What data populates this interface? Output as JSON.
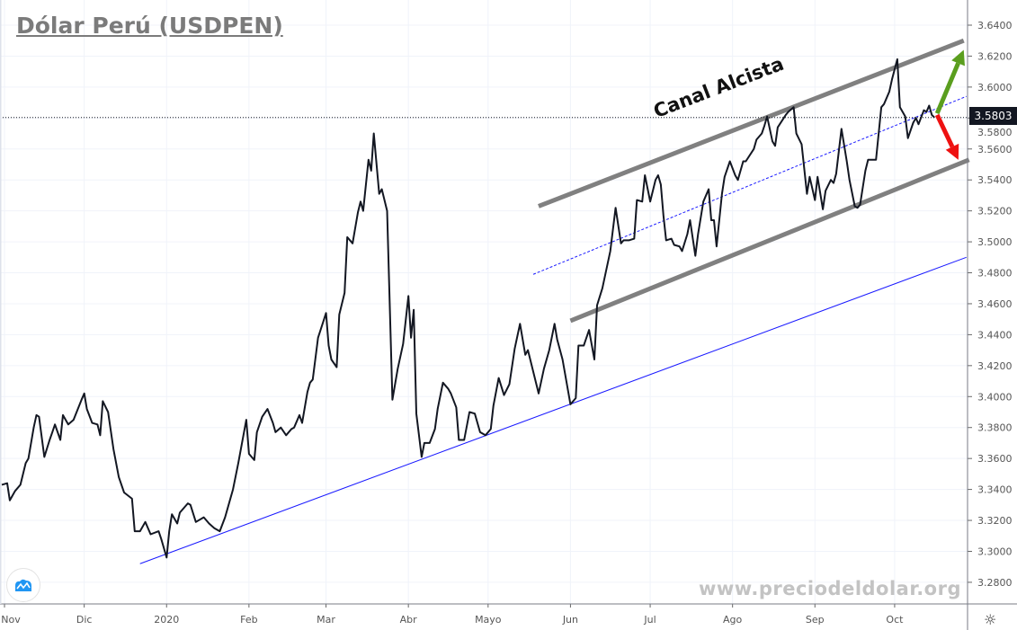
{
  "title": "Dólar Perú (USDPEN)",
  "watermark": "www.preciodeldolar.org",
  "annotation": "Canal Alcista",
  "last_price_label": "3.5803",
  "icons": {
    "logo": "tradingview-cloud-logo",
    "settings": "gear-icon"
  },
  "colors": {
    "price_line": "#131722",
    "support_line": "#1a1aff",
    "channel_lines": "#808080",
    "up_arrow": "#5a9e1e",
    "down_arrow": "#ee1111",
    "price_label_bg": "#131722"
  },
  "chart_data": {
    "type": "line",
    "title": "Dólar Perú (USDPEN)",
    "xlabel": "",
    "ylabel": "",
    "ylim": [
      3.27,
      3.65
    ],
    "grid": true,
    "y_ticks": [
      "3.2800",
      "3.3000",
      "3.3200",
      "3.3400",
      "3.3600",
      "3.3800",
      "3.4000",
      "3.4200",
      "3.4400",
      "3.4600",
      "3.4800",
      "3.5000",
      "3.5200",
      "3.5400",
      "3.5600",
      "3.5800",
      "3.6000",
      "3.6200",
      "3.6400"
    ],
    "x_ticks": [
      {
        "label": "Nov",
        "date": "2019-11-01"
      },
      {
        "label": "Dic",
        "date": "2019-12-01"
      },
      {
        "label": "2020",
        "date": "2020-01-01"
      },
      {
        "label": "Feb",
        "date": "2020-02-01"
      },
      {
        "label": "Mar",
        "date": "2020-03-01"
      },
      {
        "label": "Abr",
        "date": "2020-04-01"
      },
      {
        "label": "Mayo",
        "date": "2020-05-01"
      },
      {
        "label": "Jun",
        "date": "2020-06-01"
      },
      {
        "label": "Jul",
        "date": "2020-07-01"
      },
      {
        "label": "Ago",
        "date": "2020-08-01"
      },
      {
        "label": "Sep",
        "date": "2020-09-01"
      },
      {
        "label": "Oct",
        "date": "2020-10-01"
      }
    ],
    "last_value": 3.5803,
    "series": [
      {
        "points": [
          [
            "2019-10-31",
            3.343
          ],
          [
            "2019-11-02",
            3.344
          ],
          [
            "2019-11-03",
            3.333
          ],
          [
            "2019-11-05",
            3.339
          ],
          [
            "2019-11-07",
            3.343
          ],
          [
            "2019-11-09",
            3.357
          ],
          [
            "2019-11-10",
            3.36
          ],
          [
            "2019-11-12",
            3.38
          ],
          [
            "2019-11-13",
            3.388
          ],
          [
            "2019-11-14",
            3.387
          ],
          [
            "2019-11-16",
            3.361
          ],
          [
            "2019-11-18",
            3.372
          ],
          [
            "2019-11-19",
            3.377
          ],
          [
            "2019-11-20",
            3.382
          ],
          [
            "2019-11-22",
            3.372
          ],
          [
            "2019-11-23",
            3.388
          ],
          [
            "2019-11-25",
            3.382
          ],
          [
            "2019-11-27",
            3.385
          ],
          [
            "2019-11-30",
            3.398
          ],
          [
            "2019-12-01",
            3.402
          ],
          [
            "2019-12-02",
            3.392
          ],
          [
            "2019-12-04",
            3.383
          ],
          [
            "2019-12-06",
            3.382
          ],
          [
            "2019-12-07",
            3.375
          ],
          [
            "2019-12-08",
            3.397
          ],
          [
            "2019-12-10",
            3.39
          ],
          [
            "2019-12-12",
            3.366
          ],
          [
            "2019-12-14",
            3.348
          ],
          [
            "2019-12-16",
            3.338
          ],
          [
            "2019-12-19",
            3.334
          ],
          [
            "2019-12-20",
            3.313
          ],
          [
            "2019-12-22",
            3.313
          ],
          [
            "2019-12-24",
            3.319
          ],
          [
            "2019-12-26",
            3.311
          ],
          [
            "2019-12-29",
            3.313
          ],
          [
            "2019-12-30",
            3.308
          ],
          [
            "2020-01-01",
            3.296
          ],
          [
            "2020-01-02",
            3.313
          ],
          [
            "2020-01-03",
            3.324
          ],
          [
            "2020-01-05",
            3.318
          ],
          [
            "2020-01-06",
            3.325
          ],
          [
            "2020-01-09",
            3.331
          ],
          [
            "2020-01-10",
            3.33
          ],
          [
            "2020-01-12",
            3.319
          ],
          [
            "2020-01-15",
            3.322
          ],
          [
            "2020-01-17",
            3.318
          ],
          [
            "2020-01-19",
            3.315
          ],
          [
            "2020-01-21",
            3.313
          ],
          [
            "2020-01-23",
            3.322
          ],
          [
            "2020-01-26",
            3.34
          ],
          [
            "2020-01-28",
            3.357
          ],
          [
            "2020-01-31",
            3.385
          ],
          [
            "2020-02-01",
            3.363
          ],
          [
            "2020-02-03",
            3.359
          ],
          [
            "2020-02-04",
            3.377
          ],
          [
            "2020-02-06",
            3.387
          ],
          [
            "2020-02-08",
            3.392
          ],
          [
            "2020-02-10",
            3.383
          ],
          [
            "2020-02-11",
            3.377
          ],
          [
            "2020-02-13",
            3.38
          ],
          [
            "2020-02-15",
            3.375
          ],
          [
            "2020-02-17",
            3.379
          ],
          [
            "2020-02-18",
            3.38
          ],
          [
            "2020-02-20",
            3.388
          ],
          [
            "2020-02-21",
            3.383
          ],
          [
            "2020-02-23",
            3.403
          ],
          [
            "2020-02-24",
            3.409
          ],
          [
            "2020-02-25",
            3.411
          ],
          [
            "2020-02-27",
            3.438
          ],
          [
            "2020-03-01",
            3.454
          ],
          [
            "2020-03-02",
            3.433
          ],
          [
            "2020-03-03",
            3.424
          ],
          [
            "2020-03-05",
            3.419
          ],
          [
            "2020-03-06",
            3.453
          ],
          [
            "2020-03-08",
            3.467
          ],
          [
            "2020-03-09",
            3.503
          ],
          [
            "2020-03-11",
            3.499
          ],
          [
            "2020-03-13",
            3.519
          ],
          [
            "2020-03-14",
            3.526
          ],
          [
            "2020-03-15",
            3.52
          ],
          [
            "2020-03-17",
            3.553
          ],
          [
            "2020-03-18",
            3.546
          ],
          [
            "2020-03-19",
            3.57
          ],
          [
            "2020-03-21",
            3.531
          ],
          [
            "2020-03-22",
            3.534
          ],
          [
            "2020-03-24",
            3.52
          ],
          [
            "2020-03-26",
            3.398
          ],
          [
            "2020-03-28",
            3.418
          ],
          [
            "2020-03-30",
            3.434
          ],
          [
            "2020-04-01",
            3.465
          ],
          [
            "2020-04-02",
            3.438
          ],
          [
            "2020-04-03",
            3.456
          ],
          [
            "2020-04-04",
            3.389
          ],
          [
            "2020-04-06",
            3.361
          ],
          [
            "2020-04-07",
            3.37
          ],
          [
            "2020-04-09",
            3.37
          ],
          [
            "2020-04-11",
            3.379
          ],
          [
            "2020-04-12",
            3.392
          ],
          [
            "2020-04-14",
            3.409
          ],
          [
            "2020-04-16",
            3.405
          ],
          [
            "2020-04-17",
            3.402
          ],
          [
            "2020-04-19",
            3.393
          ],
          [
            "2020-04-20",
            3.372
          ],
          [
            "2020-04-22",
            3.372
          ],
          [
            "2020-04-24",
            3.39
          ],
          [
            "2020-04-26",
            3.389
          ],
          [
            "2020-04-28",
            3.377
          ],
          [
            "2020-04-30",
            3.375
          ],
          [
            "2020-05-02",
            3.379
          ],
          [
            "2020-05-03",
            3.394
          ],
          [
            "2020-05-05",
            3.412
          ],
          [
            "2020-05-07",
            3.401
          ],
          [
            "2020-05-09",
            3.408
          ],
          [
            "2020-05-11",
            3.431
          ],
          [
            "2020-05-13",
            3.447
          ],
          [
            "2020-05-15",
            3.427
          ],
          [
            "2020-05-16",
            3.43
          ],
          [
            "2020-05-20",
            3.402
          ],
          [
            "2020-05-22",
            3.418
          ],
          [
            "2020-05-24",
            3.43
          ],
          [
            "2020-05-26",
            3.447
          ],
          [
            "2020-05-27",
            3.437
          ],
          [
            "2020-05-29",
            3.424
          ],
          [
            "2020-06-01",
            3.395
          ],
          [
            "2020-06-03",
            3.399
          ],
          [
            "2020-06-04",
            3.433
          ],
          [
            "2020-06-06",
            3.433
          ],
          [
            "2020-06-08",
            3.443
          ],
          [
            "2020-06-10",
            3.424
          ],
          [
            "2020-06-11",
            3.459
          ],
          [
            "2020-06-13",
            3.47
          ],
          [
            "2020-06-16",
            3.494
          ],
          [
            "2020-06-18",
            3.522
          ],
          [
            "2020-06-20",
            3.499
          ],
          [
            "2020-06-21",
            3.501
          ],
          [
            "2020-06-23",
            3.501
          ],
          [
            "2020-06-25",
            3.502
          ],
          [
            "2020-06-26",
            3.527
          ],
          [
            "2020-06-28",
            3.526
          ],
          [
            "2020-06-29",
            3.543
          ],
          [
            "2020-07-01",
            3.526
          ],
          [
            "2020-07-03",
            3.54
          ],
          [
            "2020-07-04",
            3.543
          ],
          [
            "2020-07-05",
            3.537
          ],
          [
            "2020-07-06",
            3.517
          ],
          [
            "2020-07-07",
            3.501
          ],
          [
            "2020-07-09",
            3.502
          ],
          [
            "2020-07-10",
            3.498
          ],
          [
            "2020-07-12",
            3.497
          ],
          [
            "2020-07-13",
            3.494
          ],
          [
            "2020-07-15",
            3.505
          ],
          [
            "2020-07-16",
            3.514
          ],
          [
            "2020-07-18",
            3.491
          ],
          [
            "2020-07-19",
            3.505
          ],
          [
            "2020-07-21",
            3.526
          ],
          [
            "2020-07-23",
            3.534
          ],
          [
            "2020-07-24",
            3.514
          ],
          [
            "2020-07-25",
            3.514
          ],
          [
            "2020-07-26",
            3.497
          ],
          [
            "2020-07-28",
            3.531
          ],
          [
            "2020-07-29",
            3.542
          ],
          [
            "2020-07-31",
            3.552
          ],
          [
            "2020-08-02",
            3.543
          ],
          [
            "2020-08-03",
            3.54
          ],
          [
            "2020-08-05",
            3.552
          ],
          [
            "2020-08-06",
            3.552
          ],
          [
            "2020-08-09",
            3.56
          ],
          [
            "2020-08-10",
            3.566
          ],
          [
            "2020-08-12",
            3.57
          ],
          [
            "2020-08-13",
            3.575
          ],
          [
            "2020-08-14",
            3.581
          ],
          [
            "2020-08-16",
            3.565
          ],
          [
            "2020-08-17",
            3.562
          ],
          [
            "2020-08-18",
            3.574
          ],
          [
            "2020-08-21",
            3.582
          ],
          [
            "2020-08-22",
            3.584
          ],
          [
            "2020-08-24",
            3.587
          ],
          [
            "2020-08-25",
            3.57
          ],
          [
            "2020-08-27",
            3.563
          ],
          [
            "2020-08-29",
            3.531
          ],
          [
            "2020-08-30",
            3.542
          ],
          [
            "2020-09-01",
            3.527
          ],
          [
            "2020-09-02",
            3.542
          ],
          [
            "2020-09-04",
            3.521
          ],
          [
            "2020-09-05",
            3.533
          ],
          [
            "2020-09-07",
            3.54
          ],
          [
            "2020-09-08",
            3.538
          ],
          [
            "2020-09-09",
            3.544
          ],
          [
            "2020-09-11",
            3.573
          ],
          [
            "2020-09-13",
            3.552
          ],
          [
            "2020-09-14",
            3.54
          ],
          [
            "2020-09-16",
            3.523
          ],
          [
            "2020-09-17",
            3.522
          ],
          [
            "2020-09-18",
            3.524
          ],
          [
            "2020-09-20",
            3.546
          ],
          [
            "2020-09-21",
            3.553
          ],
          [
            "2020-09-23",
            3.553
          ],
          [
            "2020-09-24",
            3.553
          ],
          [
            "2020-09-26",
            3.587
          ],
          [
            "2020-09-27",
            3.589
          ],
          [
            "2020-09-29",
            3.597
          ],
          [
            "2020-09-30",
            3.605
          ],
          [
            "2020-10-02",
            3.618
          ],
          [
            "2020-10-03",
            3.587
          ],
          [
            "2020-10-05",
            3.581
          ],
          [
            "2020-10-06",
            3.567
          ],
          [
            "2020-10-08",
            3.577
          ],
          [
            "2020-10-09",
            3.58
          ],
          [
            "2020-10-10",
            3.576
          ],
          [
            "2020-10-12",
            3.585
          ],
          [
            "2020-10-13",
            3.584
          ],
          [
            "2020-10-14",
            3.588
          ],
          [
            "2020-10-15",
            3.582
          ],
          [
            "2020-10-16",
            3.5803
          ]
        ]
      }
    ],
    "drawings": [
      {
        "name": "support-trendline",
        "style": "solid-thin",
        "color": "#1a1aff",
        "from": [
          "2019-12-22",
          3.292
        ],
        "to": [
          "2020-10-28",
          3.49
        ]
      },
      {
        "name": "channel-midline",
        "style": "dashed-thin",
        "color": "#1a1aff",
        "from": [
          "2020-05-18",
          3.479
        ],
        "to": [
          "2020-10-28",
          3.594
        ]
      },
      {
        "name": "channel-upper",
        "style": "thick",
        "color": "#808080",
        "from": [
          "2020-05-20",
          3.523
        ],
        "to": [
          "2020-10-27",
          3.63
        ]
      },
      {
        "name": "channel-lower",
        "style": "thick",
        "color": "#808080",
        "from": [
          "2020-06-01",
          3.449
        ],
        "to": [
          "2020-10-29",
          3.553
        ]
      },
      {
        "name": "up-arrow",
        "style": "arrow",
        "color": "#5a9e1e",
        "from": [
          "2020-10-17",
          3.583
        ],
        "to": [
          "2020-10-27",
          3.624
        ]
      },
      {
        "name": "down-arrow",
        "style": "arrow",
        "color": "#ee1111",
        "from": [
          "2020-10-17",
          3.582
        ],
        "to": [
          "2020-10-25",
          3.553
        ]
      }
    ]
  }
}
